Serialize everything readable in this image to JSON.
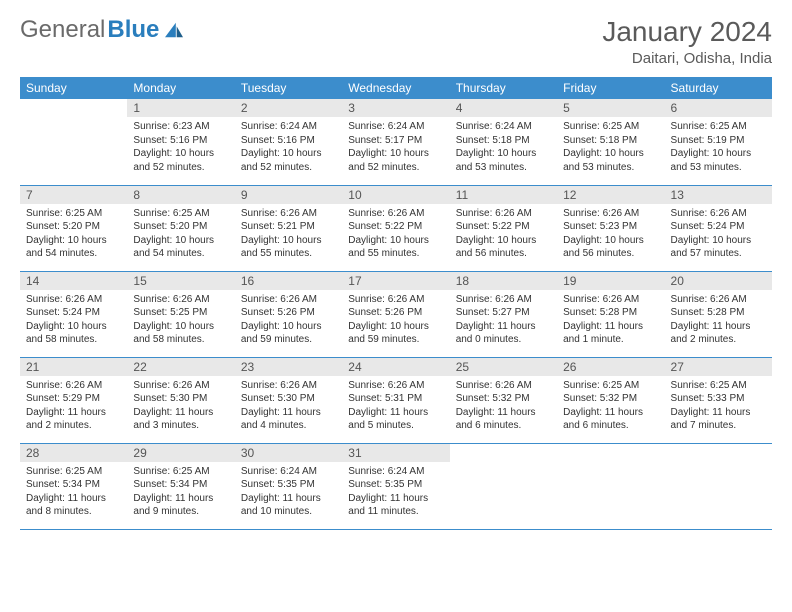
{
  "brand": {
    "word1": "General",
    "word2": "Blue"
  },
  "title": "January 2024",
  "location": "Daitari, Odisha, India",
  "colors": {
    "header_bg": "#3c8dcc",
    "header_text": "#ffffff",
    "daynum_bg": "#e8e8e8",
    "border": "#3c8dcc",
    "text": "#333333",
    "title_text": "#5a5a5a",
    "logo_gray": "#6a6a6a",
    "logo_blue": "#2a7ebd"
  },
  "weekdays": [
    "Sunday",
    "Monday",
    "Tuesday",
    "Wednesday",
    "Thursday",
    "Friday",
    "Saturday"
  ],
  "weeks": [
    [
      null,
      {
        "d": "1",
        "sr": "Sunrise: 6:23 AM",
        "ss": "Sunset: 5:16 PM",
        "dl1": "Daylight: 10 hours",
        "dl2": "and 52 minutes."
      },
      {
        "d": "2",
        "sr": "Sunrise: 6:24 AM",
        "ss": "Sunset: 5:16 PM",
        "dl1": "Daylight: 10 hours",
        "dl2": "and 52 minutes."
      },
      {
        "d": "3",
        "sr": "Sunrise: 6:24 AM",
        "ss": "Sunset: 5:17 PM",
        "dl1": "Daylight: 10 hours",
        "dl2": "and 52 minutes."
      },
      {
        "d": "4",
        "sr": "Sunrise: 6:24 AM",
        "ss": "Sunset: 5:18 PM",
        "dl1": "Daylight: 10 hours",
        "dl2": "and 53 minutes."
      },
      {
        "d": "5",
        "sr": "Sunrise: 6:25 AM",
        "ss": "Sunset: 5:18 PM",
        "dl1": "Daylight: 10 hours",
        "dl2": "and 53 minutes."
      },
      {
        "d": "6",
        "sr": "Sunrise: 6:25 AM",
        "ss": "Sunset: 5:19 PM",
        "dl1": "Daylight: 10 hours",
        "dl2": "and 53 minutes."
      }
    ],
    [
      {
        "d": "7",
        "sr": "Sunrise: 6:25 AM",
        "ss": "Sunset: 5:20 PM",
        "dl1": "Daylight: 10 hours",
        "dl2": "and 54 minutes."
      },
      {
        "d": "8",
        "sr": "Sunrise: 6:25 AM",
        "ss": "Sunset: 5:20 PM",
        "dl1": "Daylight: 10 hours",
        "dl2": "and 54 minutes."
      },
      {
        "d": "9",
        "sr": "Sunrise: 6:26 AM",
        "ss": "Sunset: 5:21 PM",
        "dl1": "Daylight: 10 hours",
        "dl2": "and 55 minutes."
      },
      {
        "d": "10",
        "sr": "Sunrise: 6:26 AM",
        "ss": "Sunset: 5:22 PM",
        "dl1": "Daylight: 10 hours",
        "dl2": "and 55 minutes."
      },
      {
        "d": "11",
        "sr": "Sunrise: 6:26 AM",
        "ss": "Sunset: 5:22 PM",
        "dl1": "Daylight: 10 hours",
        "dl2": "and 56 minutes."
      },
      {
        "d": "12",
        "sr": "Sunrise: 6:26 AM",
        "ss": "Sunset: 5:23 PM",
        "dl1": "Daylight: 10 hours",
        "dl2": "and 56 minutes."
      },
      {
        "d": "13",
        "sr": "Sunrise: 6:26 AM",
        "ss": "Sunset: 5:24 PM",
        "dl1": "Daylight: 10 hours",
        "dl2": "and 57 minutes."
      }
    ],
    [
      {
        "d": "14",
        "sr": "Sunrise: 6:26 AM",
        "ss": "Sunset: 5:24 PM",
        "dl1": "Daylight: 10 hours",
        "dl2": "and 58 minutes."
      },
      {
        "d": "15",
        "sr": "Sunrise: 6:26 AM",
        "ss": "Sunset: 5:25 PM",
        "dl1": "Daylight: 10 hours",
        "dl2": "and 58 minutes."
      },
      {
        "d": "16",
        "sr": "Sunrise: 6:26 AM",
        "ss": "Sunset: 5:26 PM",
        "dl1": "Daylight: 10 hours",
        "dl2": "and 59 minutes."
      },
      {
        "d": "17",
        "sr": "Sunrise: 6:26 AM",
        "ss": "Sunset: 5:26 PM",
        "dl1": "Daylight: 10 hours",
        "dl2": "and 59 minutes."
      },
      {
        "d": "18",
        "sr": "Sunrise: 6:26 AM",
        "ss": "Sunset: 5:27 PM",
        "dl1": "Daylight: 11 hours",
        "dl2": "and 0 minutes."
      },
      {
        "d": "19",
        "sr": "Sunrise: 6:26 AM",
        "ss": "Sunset: 5:28 PM",
        "dl1": "Daylight: 11 hours",
        "dl2": "and 1 minute."
      },
      {
        "d": "20",
        "sr": "Sunrise: 6:26 AM",
        "ss": "Sunset: 5:28 PM",
        "dl1": "Daylight: 11 hours",
        "dl2": "and 2 minutes."
      }
    ],
    [
      {
        "d": "21",
        "sr": "Sunrise: 6:26 AM",
        "ss": "Sunset: 5:29 PM",
        "dl1": "Daylight: 11 hours",
        "dl2": "and 2 minutes."
      },
      {
        "d": "22",
        "sr": "Sunrise: 6:26 AM",
        "ss": "Sunset: 5:30 PM",
        "dl1": "Daylight: 11 hours",
        "dl2": "and 3 minutes."
      },
      {
        "d": "23",
        "sr": "Sunrise: 6:26 AM",
        "ss": "Sunset: 5:30 PM",
        "dl1": "Daylight: 11 hours",
        "dl2": "and 4 minutes."
      },
      {
        "d": "24",
        "sr": "Sunrise: 6:26 AM",
        "ss": "Sunset: 5:31 PM",
        "dl1": "Daylight: 11 hours",
        "dl2": "and 5 minutes."
      },
      {
        "d": "25",
        "sr": "Sunrise: 6:26 AM",
        "ss": "Sunset: 5:32 PM",
        "dl1": "Daylight: 11 hours",
        "dl2": "and 6 minutes."
      },
      {
        "d": "26",
        "sr": "Sunrise: 6:25 AM",
        "ss": "Sunset: 5:32 PM",
        "dl1": "Daylight: 11 hours",
        "dl2": "and 6 minutes."
      },
      {
        "d": "27",
        "sr": "Sunrise: 6:25 AM",
        "ss": "Sunset: 5:33 PM",
        "dl1": "Daylight: 11 hours",
        "dl2": "and 7 minutes."
      }
    ],
    [
      {
        "d": "28",
        "sr": "Sunrise: 6:25 AM",
        "ss": "Sunset: 5:34 PM",
        "dl1": "Daylight: 11 hours",
        "dl2": "and 8 minutes."
      },
      {
        "d": "29",
        "sr": "Sunrise: 6:25 AM",
        "ss": "Sunset: 5:34 PM",
        "dl1": "Daylight: 11 hours",
        "dl2": "and 9 minutes."
      },
      {
        "d": "30",
        "sr": "Sunrise: 6:24 AM",
        "ss": "Sunset: 5:35 PM",
        "dl1": "Daylight: 11 hours",
        "dl2": "and 10 minutes."
      },
      {
        "d": "31",
        "sr": "Sunrise: 6:24 AM",
        "ss": "Sunset: 5:35 PM",
        "dl1": "Daylight: 11 hours",
        "dl2": "and 11 minutes."
      },
      null,
      null,
      null
    ]
  ]
}
